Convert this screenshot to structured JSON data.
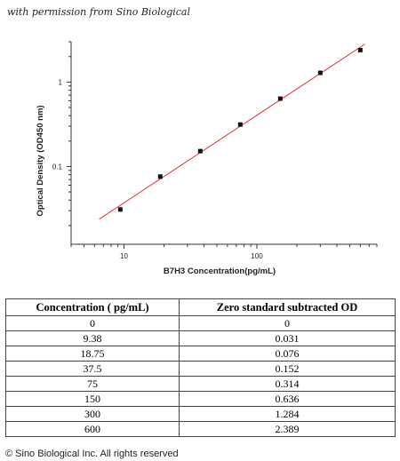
{
  "permission_note": "with permission from Sino Biological",
  "chart_data": {
    "type": "scatter",
    "xlabel": "B7H3  Concentration(pg/mL)",
    "ylabel": "Optical Density (OD450 nm)",
    "xscale": "log",
    "yscale": "log",
    "xlim": [
      4,
      800
    ],
    "ylim": [
      0.012,
      3.0
    ],
    "x_ticks": [
      10,
      100
    ],
    "x_tick_labels": [
      "10",
      "100"
    ],
    "y_ticks": [
      0.1,
      1
    ],
    "y_tick_labels": [
      "0.1",
      "1"
    ],
    "points": [
      {
        "x": 9.38,
        "y": 0.031
      },
      {
        "x": 18.75,
        "y": 0.076
      },
      {
        "x": 37.5,
        "y": 0.152
      },
      {
        "x": 75,
        "y": 0.314
      },
      {
        "x": 150,
        "y": 0.636
      },
      {
        "x": 300,
        "y": 1.284
      },
      {
        "x": 600,
        "y": 2.389
      }
    ],
    "fit_line": {
      "x_start": 6.5,
      "x_end": 650,
      "color": "#e8262a"
    },
    "marker_color": "#111111",
    "grid": false,
    "legend": "none"
  },
  "table": {
    "headers": [
      "Concentration ( pg/mL)",
      "Zero standard subtracted OD"
    ],
    "rows": [
      [
        "0",
        "0"
      ],
      [
        "9.38",
        "0.031"
      ],
      [
        "18.75",
        "0.076"
      ],
      [
        "37.5",
        "0.152"
      ],
      [
        "75",
        "0.314"
      ],
      [
        "150",
        "0.636"
      ],
      [
        "300",
        "1.284"
      ],
      [
        "600",
        "2.389"
      ]
    ]
  },
  "copyright": "© Sino Biological Inc. All rights reserved"
}
